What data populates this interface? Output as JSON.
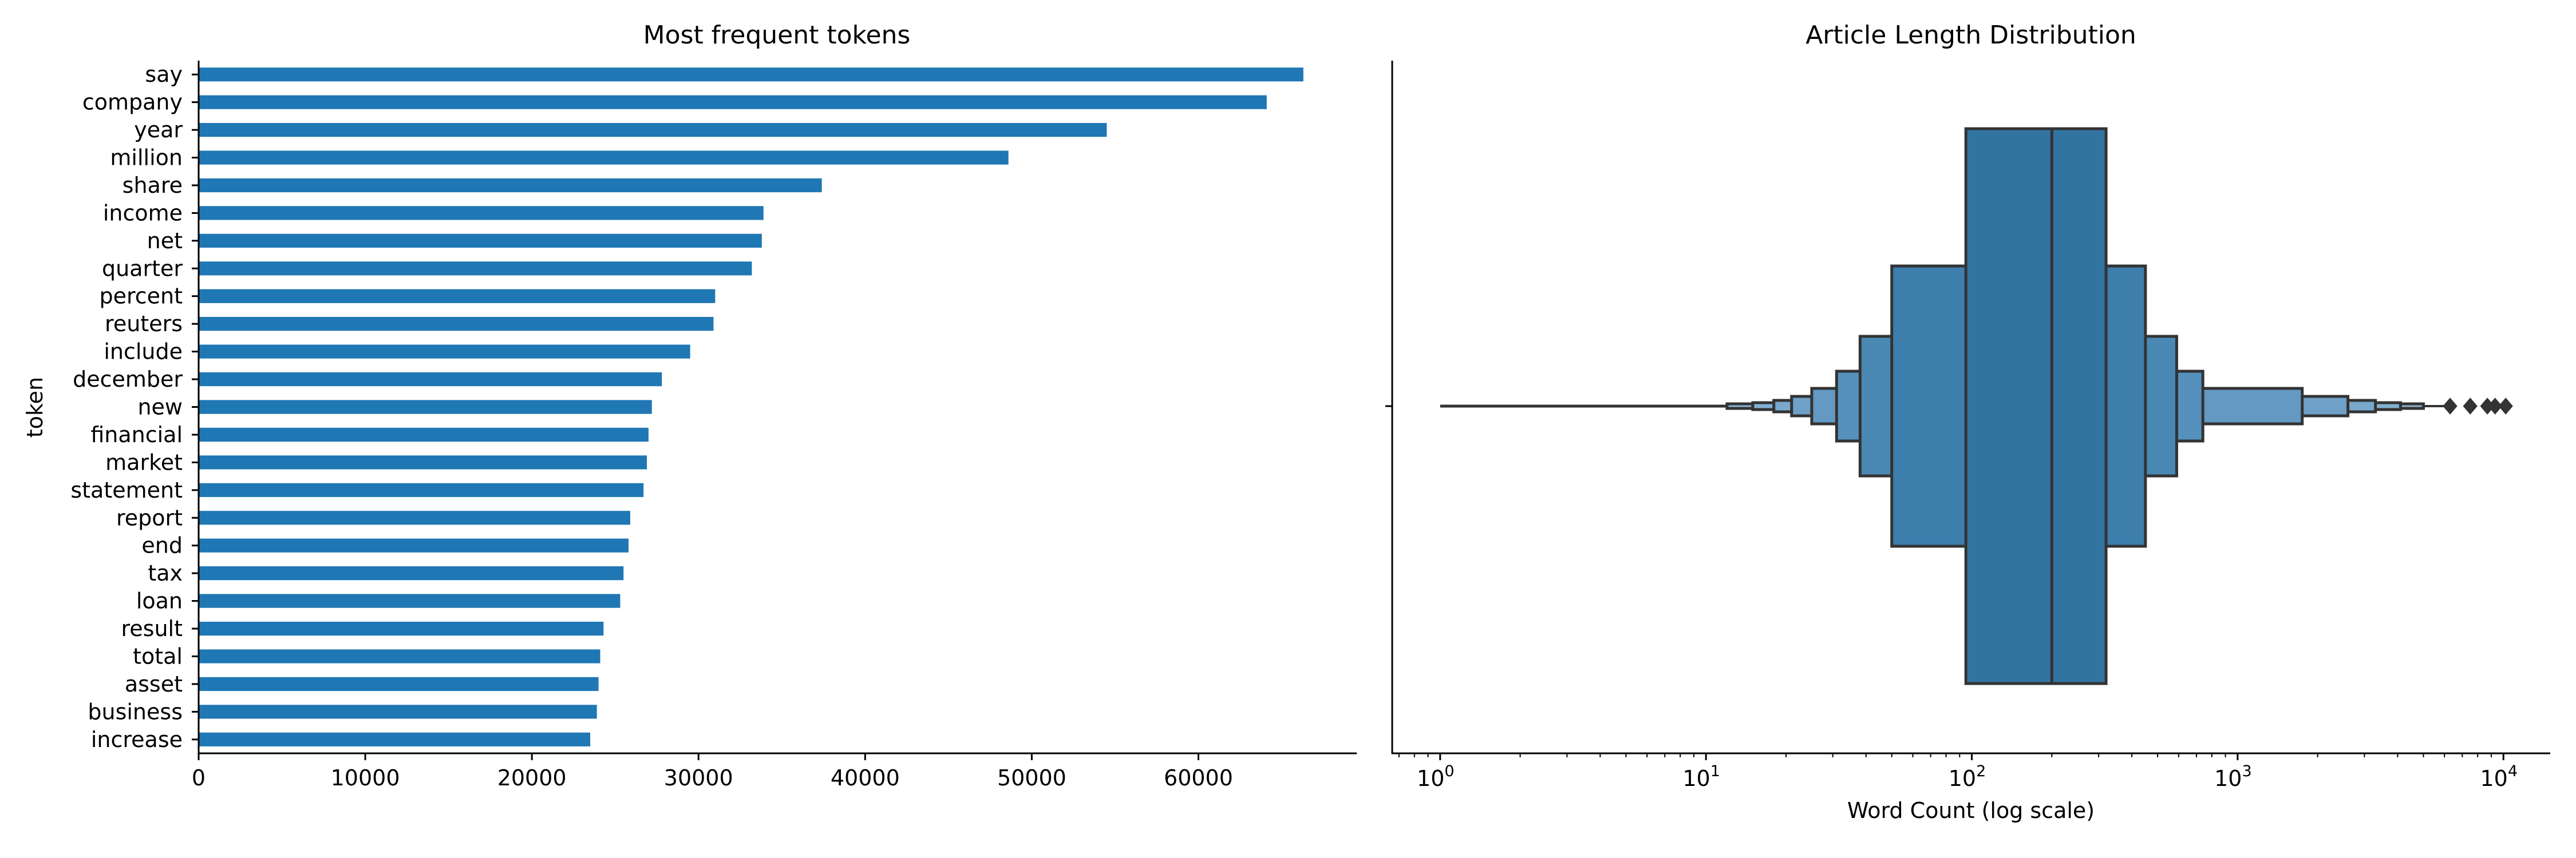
{
  "chart_data": [
    {
      "type": "bar",
      "orientation": "horizontal",
      "title": "Most frequent tokens",
      "xlabel": "",
      "ylabel": "token",
      "categories": [
        "say",
        "company",
        "year",
        "million",
        "share",
        "income",
        "net",
        "quarter",
        "percent",
        "reuters",
        "include",
        "december",
        "new",
        "financial",
        "market",
        "statement",
        "report",
        "end",
        "tax",
        "loan",
        "result",
        "total",
        "asset",
        "business",
        "increase"
      ],
      "values": [
        66300,
        64100,
        54500,
        48600,
        37400,
        33900,
        33800,
        33200,
        31000,
        30900,
        29500,
        27800,
        27200,
        27000,
        26900,
        26700,
        25900,
        25800,
        25500,
        25300,
        24300,
        24100,
        24000,
        23900,
        23500
      ],
      "xlim": [
        0,
        69500
      ],
      "xticks": [
        0,
        10000,
        20000,
        30000,
        40000,
        50000,
        60000
      ],
      "xtick_labels": [
        "0",
        "10000",
        "20000",
        "30000",
        "40000",
        "50000",
        "60000"
      ],
      "bar_color": "#1f77b4",
      "grid": false
    },
    {
      "type": "boxenplot",
      "title": "Article Length Distribution",
      "xlabel": "Word Count (log scale)",
      "ylabel": "",
      "x_scale": "log",
      "xlim": [
        0.66,
        15000
      ],
      "xticks": [
        1,
        10,
        100,
        1000,
        10000
      ],
      "xtick_labels": [
        {
          "base": "10",
          "exp": "0"
        },
        {
          "base": "10",
          "exp": "1"
        },
        {
          "base": "10",
          "exp": "2"
        },
        {
          "base": "10",
          "exp": "3"
        },
        {
          "base": "10",
          "exp": "4"
        }
      ],
      "median": 200,
      "boxes": [
        {
          "lo": 95,
          "hi": 320,
          "color": "#3274a1"
        },
        {
          "lo": 50,
          "hi": 450,
          "color": "#3d7eac"
        },
        {
          "lo": 38,
          "hi": 590,
          "color": "#4a88b4"
        },
        {
          "lo": 31,
          "hi": 740,
          "color": "#5591bc"
        },
        {
          "lo": 25,
          "hi": 1750,
          "color": "#6399c2"
        },
        {
          "lo": 21,
          "hi": 2600,
          "color": "#6fa1c8"
        },
        {
          "lo": 18,
          "hi": 3300,
          "color": "#79a8cc"
        },
        {
          "lo": 15,
          "hi": 4100,
          "color": "#83b0d1"
        },
        {
          "lo": 12,
          "hi": 5000,
          "color": "#8db6d5"
        }
      ],
      "whisker_min": 1,
      "outliers": [
        6300,
        7500,
        8700,
        9300,
        10200
      ],
      "box_edge_color": "#333333",
      "grid": false
    }
  ]
}
